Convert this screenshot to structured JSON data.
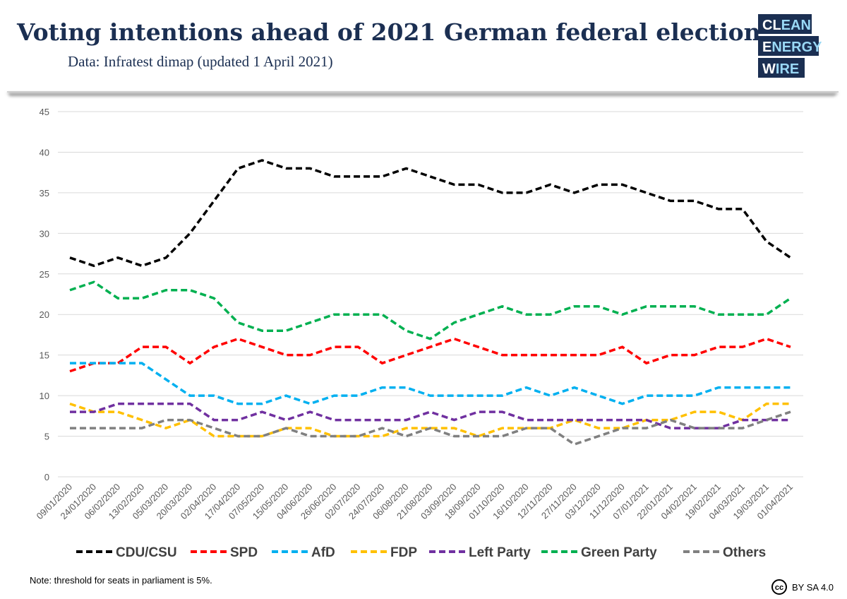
{
  "chart_data": {
    "type": "line",
    "title": "Voting intentions ahead of 2021 German federal election.",
    "subtitle": "Data: Infratest dimap (updated 1 April 2021)",
    "note": "Note: threshold for seats in parliament is 5%.",
    "license_icon": "cc",
    "license": "BY SA 4.0",
    "logo": [
      {
        "lead": "CL",
        "rest": "EAN"
      },
      {
        "lead": "E",
        "rest": "NERGY"
      },
      {
        "lead": "W",
        "rest": "IRE"
      }
    ],
    "categories": [
      "09/01/2020",
      "24/01/2020",
      "06/02/2020",
      "13/02/2020",
      "05/03/2020",
      "20/03/2020",
      "02/04/2020",
      "17/04/2020",
      "07/05/2020",
      "15/05/2020",
      "04/06/2020",
      "26/06/2020",
      "02/07/2020",
      "24/07/2020",
      "06/08/2020",
      "21/08/2020",
      "03/09/2020",
      "18/09/2020",
      "01/10/2020",
      "16/10/2020",
      "12/11/2020",
      "27/11/2020",
      "03/12/2020",
      "11/12/2020",
      "07/01/2021",
      "22/01/2021",
      "04/02/2021",
      "19/02/2021",
      "04/03/2021",
      "19/03/2021",
      "01/04/2021"
    ],
    "series": [
      {
        "name": "CDU/CSU",
        "color": "#000000",
        "values": [
          27,
          26,
          27,
          26,
          27,
          30,
          34,
          38,
          39,
          38,
          38,
          37,
          37,
          37,
          38,
          37,
          36,
          36,
          35,
          35,
          36,
          35,
          36,
          36,
          35,
          34,
          34,
          33,
          33,
          29,
          27
        ]
      },
      {
        "name": "SPD",
        "color": "#ff0000",
        "values": [
          13,
          14,
          14,
          16,
          16,
          14,
          16,
          17,
          16,
          15,
          15,
          16,
          16,
          14,
          15,
          16,
          17,
          16,
          15,
          15,
          15,
          15,
          15,
          16,
          14,
          15,
          15,
          16,
          16,
          17,
          16
        ]
      },
      {
        "name": "AfD",
        "color": "#00b0f0",
        "values": [
          14,
          14,
          14,
          14,
          12,
          10,
          10,
          9,
          9,
          10,
          9,
          10,
          10,
          11,
          11,
          10,
          10,
          10,
          10,
          11,
          10,
          11,
          10,
          9,
          10,
          10,
          10,
          11,
          11,
          11,
          11
        ]
      },
      {
        "name": "FDP",
        "color": "#ffc000",
        "values": [
          9,
          8,
          8,
          7,
          6,
          7,
          5,
          5,
          5,
          6,
          6,
          5,
          5,
          5,
          6,
          6,
          6,
          5,
          6,
          6,
          6,
          7,
          6,
          6,
          7,
          7,
          8,
          8,
          7,
          9,
          9
        ]
      },
      {
        "name": "Left Party",
        "color": "#7030a0",
        "values": [
          8,
          8,
          9,
          9,
          9,
          9,
          7,
          7,
          8,
          7,
          8,
          7,
          7,
          7,
          7,
          8,
          7,
          8,
          8,
          7,
          7,
          7,
          7,
          7,
          7,
          6,
          6,
          6,
          7,
          7,
          7
        ]
      },
      {
        "name": "Green Party",
        "color": "#00b050",
        "values": [
          23,
          24,
          22,
          22,
          23,
          23,
          22,
          19,
          18,
          18,
          19,
          20,
          20,
          20,
          18,
          17,
          19,
          20,
          21,
          20,
          20,
          21,
          21,
          20,
          21,
          21,
          21,
          20,
          20,
          20,
          22
        ]
      },
      {
        "name": "Others",
        "color": "#808080",
        "values": [
          6,
          6,
          6,
          6,
          7,
          7,
          6,
          5,
          5,
          6,
          5,
          5,
          5,
          6,
          5,
          6,
          5,
          5,
          5,
          6,
          6,
          4,
          5,
          6,
          6,
          7,
          6,
          6,
          6,
          7,
          8
        ]
      }
    ],
    "ylim": [
      0,
      45
    ],
    "yticks": [
      0,
      5,
      10,
      15,
      20,
      25,
      30,
      35,
      40,
      45
    ],
    "grid": true,
    "legend": "bottom"
  }
}
